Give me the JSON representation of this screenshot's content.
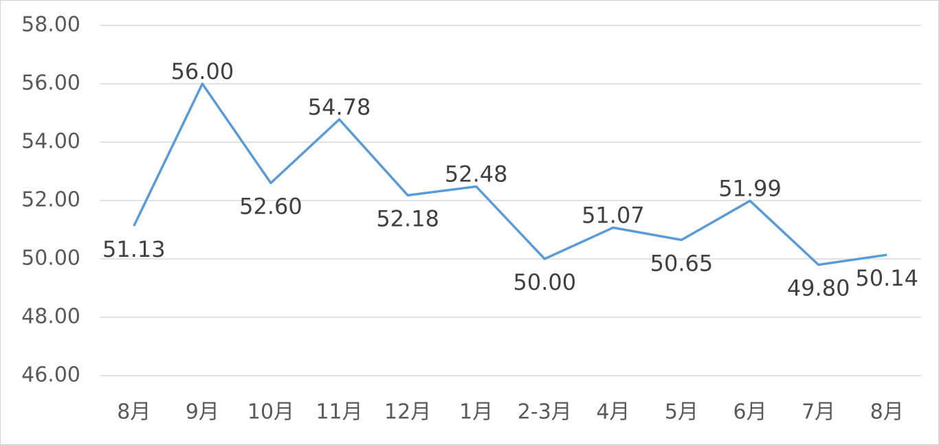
{
  "chart_data": {
    "type": "line",
    "categories": [
      "8月",
      "9月",
      "10月",
      "11月",
      "12月",
      "1月",
      "2-3月",
      "4月",
      "5月",
      "6月",
      "7月",
      "8月"
    ],
    "values": [
      51.13,
      56,
      52.6,
      54.78,
      52.18,
      52.48,
      50,
      51.07,
      50.65,
      51.99,
      49.8,
      50.14
    ],
    "value_labels": [
      "51.13",
      "56.00",
      "52.60",
      "54.78",
      "52.18",
      "52.48",
      "50.00",
      "51.07",
      "50.65",
      "51.99",
      "49.80",
      "50.14"
    ],
    "color": "#5b9bd5",
    "ylim": [
      46,
      58
    ],
    "yticks": [
      {
        "value": 46,
        "label": "46.00"
      },
      {
        "value": 48,
        "label": "48.00"
      },
      {
        "value": 50,
        "label": "50.00"
      },
      {
        "value": 52,
        "label": "52.00"
      },
      {
        "value": 54,
        "label": "54.00"
      },
      {
        "value": 56,
        "label": "56.00"
      },
      {
        "value": 58,
        "label": "58.00"
      }
    ],
    "grid": true
  }
}
